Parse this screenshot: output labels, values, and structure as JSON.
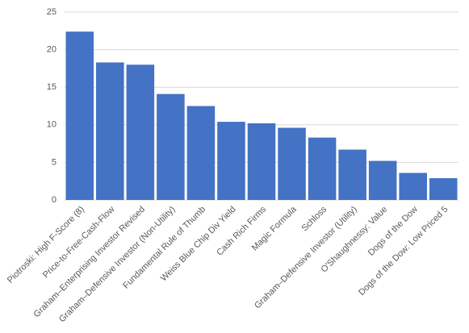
{
  "chart_data": {
    "type": "bar",
    "categories": [
      "Piotroski: High F-Score (8)",
      "Price-to-Free-Cash-Flow",
      "Graham–Enterprising Investor Revised",
      "Graham–Defensive Investor (Non-Utility)",
      "Fundamental Rule of Thumb",
      "Weiss Blue Chip Div Yield",
      "Cash Rich Firms",
      "Magic Formula",
      "Schloss",
      "Graham–Defensive Investor (Utility)",
      "O'Shaughnessy: Value",
      "Dogs of the Dow",
      "Dogs of the Dow: Low Priced 5"
    ],
    "values": [
      22.4,
      18.3,
      18.0,
      14.1,
      12.5,
      10.4,
      10.2,
      9.6,
      8.3,
      6.7,
      5.2,
      3.6,
      2.9
    ],
    "color": "#4472c4",
    "ylim": [
      0,
      25
    ],
    "yticks": [
      0,
      5,
      10,
      15,
      20,
      25
    ],
    "grid": true
  }
}
